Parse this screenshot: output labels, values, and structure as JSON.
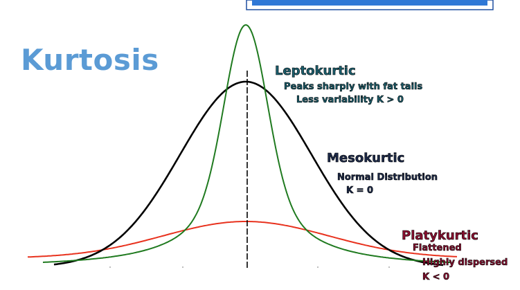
{
  "title": "Kurtosis",
  "colors": {
    "title": "#5b9bd5",
    "header_bar_fill": "#2f78d6",
    "header_bar_border": "#1f4fa0",
    "leptokurtic": "#1f7a1f",
    "mesokurtic": "#000000",
    "platykurtic": "#e8321e",
    "lepto_text": "#1b5f6e",
    "meso_text": "#1d2a4a",
    "platy_text": "#8a1030"
  },
  "labels": {
    "leptokurtic": {
      "heading": "Leptokurtic",
      "line1": "Peaks sharply with fat tails",
      "line2": "Less variability K > 0"
    },
    "mesokurtic": {
      "heading": "Mesokurtic",
      "line1": "Normal Distribution",
      "line2": "K = 0"
    },
    "platykurtic": {
      "heading": "Platykurtic",
      "line1": "Flattened",
      "line2": "Highly dispersed",
      "line3": "K < 0"
    }
  }
}
